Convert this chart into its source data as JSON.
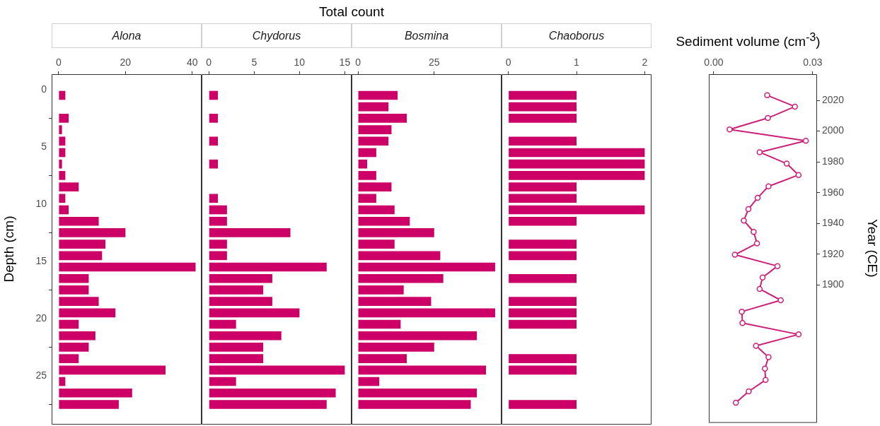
{
  "chart_data": [
    {
      "type": "bar",
      "orientation": "horizontal",
      "title": "Alona",
      "ylabel": "Depth (cm)",
      "color": "#cc0066",
      "grid": false,
      "x": [
        0.5,
        1.5,
        2.5,
        3.5,
        4.5,
        5.5,
        6.5,
        7.5,
        8.5,
        9.5,
        10.5,
        11.5,
        12.5,
        13.5,
        14.5,
        15.5,
        16.5,
        17.5,
        18.5,
        19.5,
        20.5,
        21.5,
        22.5,
        23.5,
        24.5,
        25.5,
        26.5,
        27.5
      ],
      "values": [
        2,
        0,
        3,
        1,
        2,
        2,
        1,
        2,
        6,
        2,
        3,
        12,
        20,
        14,
        13,
        41,
        9,
        9,
        12,
        17,
        6,
        11,
        9,
        6,
        32,
        2,
        22,
        18
      ],
      "xlim": [
        -2.1,
        42.8
      ],
      "xticks": [
        0,
        20,
        40
      ],
      "ylim": [
        29.2,
        -1.35
      ],
      "yticks": [
        0,
        5,
        10,
        15,
        20,
        25
      ]
    },
    {
      "type": "bar",
      "orientation": "horizontal",
      "title": "Chydorus",
      "xlabel": "Total count",
      "color": "#cc0066",
      "grid": false,
      "x": [
        0.5,
        1.5,
        2.5,
        3.5,
        4.5,
        5.5,
        6.5,
        7.5,
        8.5,
        9.5,
        10.5,
        11.5,
        12.5,
        13.5,
        14.5,
        15.5,
        16.5,
        17.5,
        18.5,
        19.5,
        20.5,
        21.5,
        22.5,
        23.5,
        24.5,
        25.5,
        26.5,
        27.5
      ],
      "values": [
        1,
        0,
        1,
        0,
        1,
        0,
        1,
        0,
        0,
        1,
        2,
        2,
        9,
        2,
        2,
        13,
        7,
        6,
        7,
        10,
        3,
        8,
        6,
        6,
        15,
        3,
        14,
        13
      ],
      "xlim": [
        -0.8,
        15.75
      ],
      "xticks": [
        0,
        5,
        10,
        15
      ],
      "ylim": [
        29.2,
        -1.35
      ]
    },
    {
      "type": "bar",
      "orientation": "horizontal",
      "title": "Bosmina",
      "color": "#cc0066",
      "grid": false,
      "x": [
        0.5,
        1.5,
        2.5,
        3.5,
        4.5,
        5.5,
        6.5,
        7.5,
        8.5,
        9.5,
        10.5,
        11.5,
        12.5,
        13.5,
        14.5,
        15.5,
        16.5,
        17.5,
        18.5,
        19.5,
        20.5,
        21.5,
        22.5,
        23.5,
        24.5,
        25.5,
        26.5,
        27.5
      ],
      "values": [
        13,
        10,
        16,
        11,
        10,
        6,
        3,
        6,
        11,
        6,
        12,
        17,
        25,
        12,
        27,
        45,
        28,
        15,
        24,
        45,
        14,
        39,
        25,
        16,
        42,
        7,
        39,
        37
      ],
      "xlim": [
        -2.1,
        47.1
      ],
      "xticks": [
        0,
        25
      ],
      "ylim": [
        29.2,
        -1.35
      ]
    },
    {
      "type": "bar",
      "orientation": "horizontal",
      "title": "Chaoborus",
      "color": "#cc0066",
      "grid": false,
      "x": [
        0.5,
        1.5,
        2.5,
        3.5,
        4.5,
        5.5,
        6.5,
        7.5,
        8.5,
        9.5,
        10.5,
        11.5,
        12.5,
        13.5,
        14.5,
        15.5,
        16.5,
        17.5,
        18.5,
        19.5,
        20.5,
        21.5,
        22.5,
        23.5,
        24.5,
        25.5,
        26.5,
        27.5
      ],
      "values": [
        1,
        1,
        1,
        0,
        1,
        2,
        2,
        2,
        1,
        1,
        2,
        1,
        0,
        1,
        1,
        0,
        1,
        0,
        1,
        1,
        1,
        0,
        0,
        1,
        1,
        0,
        0,
        1
      ],
      "xlim": [
        -0.1,
        2.1
      ],
      "xticks": [
        0,
        1,
        2
      ],
      "ylim": [
        29.2,
        -1.35
      ]
    },
    {
      "type": "line",
      "xlabel": "Sediment volume (cm$^{-3}$)",
      "y2label": "Year (CE)",
      "color": "#cc1f79",
      "marker": "circle",
      "line_style": "solid",
      "grid": false,
      "x": [
        0.0162,
        0.0246,
        0.0164,
        0.0048,
        0.0279,
        0.0139,
        0.0221,
        0.0257,
        0.0166,
        0.0133,
        0.0105,
        0.0091,
        0.0121,
        0.0131,
        0.0064,
        0.0193,
        0.0148,
        0.0139,
        0.0203,
        0.0085,
        0.0087,
        0.0257,
        0.0128,
        0.0166,
        0.0155,
        0.0157,
        0.0106,
        0.0067
      ],
      "values": [
        0.5,
        1.5,
        2.5,
        3.5,
        4.5,
        5.5,
        6.5,
        7.5,
        8.5,
        9.5,
        10.5,
        11.5,
        12.5,
        13.5,
        14.5,
        15.5,
        16.5,
        17.5,
        18.5,
        19.5,
        20.5,
        21.5,
        22.5,
        23.5,
        24.5,
        25.5,
        26.5,
        27.5
      ],
      "xlim": [
        -0.0015,
        0.0313
      ],
      "xticks": [
        {
          "value": 0,
          "label": "0.00"
        },
        {
          "value": 0.03,
          "label": "0.03"
        }
      ],
      "ylim": [
        29.2,
        -1.35
      ],
      "y2lim": [
        1811,
        2037
      ],
      "y2ticks": [
        2020,
        2000,
        1980,
        1960,
        1940,
        1920,
        1900
      ]
    }
  ]
}
